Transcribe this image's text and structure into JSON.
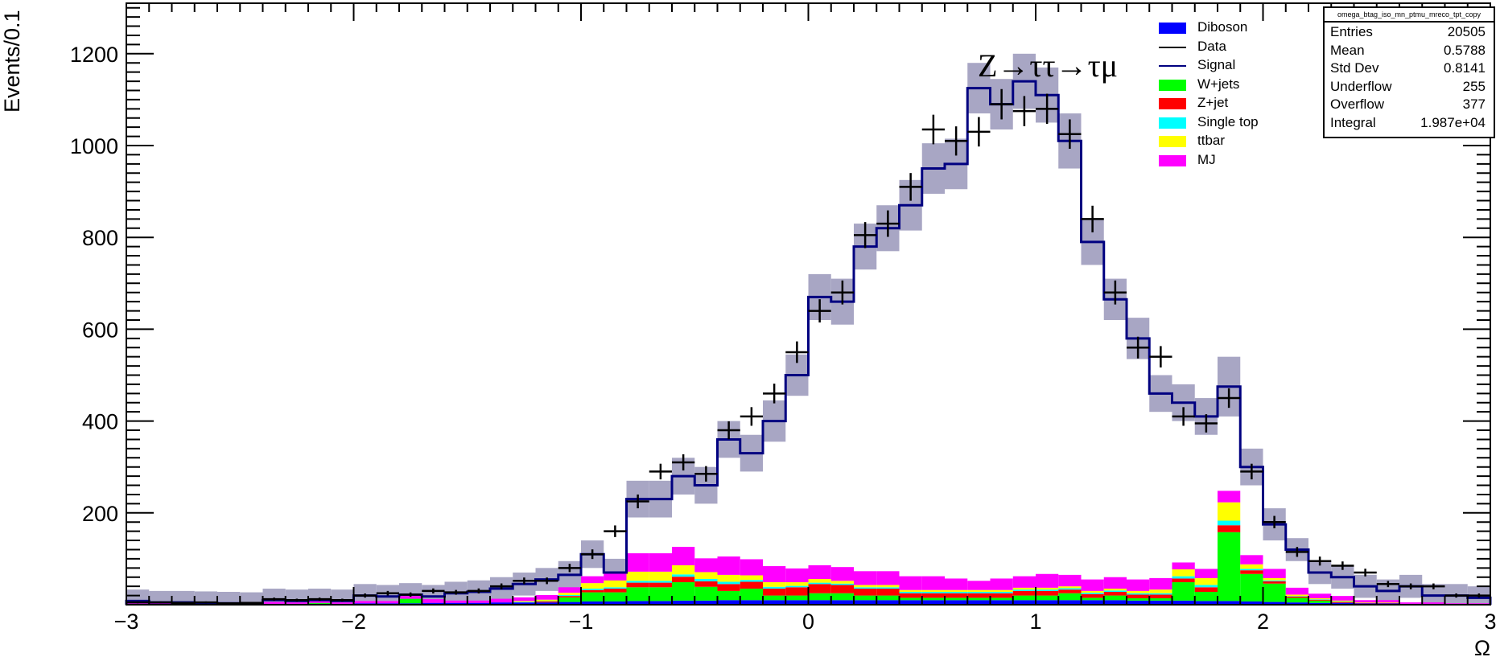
{
  "chart_data": {
    "type": "bar",
    "title": "Z→ττ→τμ",
    "xlabel": "Ω",
    "ylabel": "Events/0.1",
    "xlim": [
      -3,
      3
    ],
    "ylim": [
      0,
      1310
    ],
    "x_ticks": [
      "−3",
      "−2",
      "−1",
      "0",
      "1",
      "2",
      "3"
    ],
    "y_ticks": [
      "200",
      "400",
      "600",
      "800",
      "1000",
      "1200"
    ],
    "bin_width": 0.1,
    "bin_edges_start": -3.0,
    "signal": [
      8,
      5,
      5,
      4,
      3,
      2,
      10,
      8,
      10,
      8,
      20,
      18,
      22,
      18,
      25,
      28,
      35,
      45,
      55,
      65,
      110,
      70,
      230,
      230,
      280,
      260,
      360,
      330,
      400,
      500,
      670,
      660,
      780,
      820,
      870,
      950,
      960,
      1125,
      1090,
      1140,
      1110,
      1010,
      790,
      665,
      580,
      460,
      440,
      410,
      475,
      300,
      175,
      120,
      70,
      60,
      40,
      30,
      40,
      20,
      20,
      15
    ],
    "signal_band": [
      25,
      25,
      25,
      25,
      25,
      25,
      25,
      25,
      25,
      25,
      25,
      25,
      25,
      25,
      25,
      25,
      25,
      25,
      25,
      30,
      30,
      30,
      40,
      40,
      40,
      40,
      40,
      40,
      45,
      45,
      50,
      50,
      50,
      50,
      55,
      55,
      55,
      55,
      55,
      60,
      60,
      60,
      50,
      45,
      45,
      40,
      40,
      40,
      65,
      40,
      35,
      25,
      25,
      25,
      25,
      25,
      25,
      25,
      25,
      25
    ],
    "data": [
      5,
      5,
      4,
      5,
      3,
      4,
      12,
      10,
      12,
      10,
      20,
      25,
      22,
      30,
      27,
      30,
      40,
      52,
      52,
      80,
      110,
      160,
      225,
      290,
      310,
      285,
      380,
      410,
      460,
      550,
      640,
      680,
      805,
      830,
      910,
      1035,
      1010,
      1030,
      1090,
      1075,
      1080,
      1025,
      840,
      680,
      560,
      540,
      410,
      395,
      450,
      290,
      180,
      115,
      95,
      85,
      70,
      45,
      40,
      40,
      20,
      20
    ],
    "stack_order": [
      "Diboson",
      "W+jets",
      "Z+jet",
      "Single top",
      "ttbar",
      "MJ"
    ],
    "stack": {
      "Diboson": [
        2,
        1,
        1,
        1,
        1,
        1,
        2,
        2,
        2,
        2,
        3,
        3,
        3,
        4,
        4,
        4,
        5,
        5,
        5,
        6,
        7,
        7,
        8,
        8,
        9,
        9,
        10,
        10,
        10,
        10,
        10,
        10,
        10,
        10,
        10,
        10,
        10,
        10,
        10,
        10,
        10,
        10,
        10,
        10,
        9,
        9,
        9,
        8,
        8,
        7,
        6,
        5,
        4,
        4,
        3,
        3,
        2,
        2,
        1,
        1
      ],
      "W+jets": [
        0,
        0,
        0,
        0,
        0,
        0,
        0,
        0,
        2,
        0,
        0,
        0,
        10,
        0,
        0,
        0,
        0,
        0,
        0,
        10,
        20,
        20,
        30,
        30,
        40,
        30,
        20,
        25,
        10,
        10,
        15,
        15,
        10,
        10,
        5,
        5,
        5,
        5,
        5,
        10,
        10,
        15,
        5,
        10,
        5,
        5,
        40,
        20,
        150,
        60,
        40,
        10,
        5,
        0,
        0,
        0,
        0,
        0,
        0,
        0
      ],
      "Z+jet": [
        0,
        0,
        0,
        0,
        0,
        0,
        0,
        0,
        0,
        0,
        0,
        0,
        0,
        0,
        0,
        0,
        0,
        0,
        2,
        3,
        5,
        8,
        10,
        10,
        12,
        12,
        15,
        15,
        15,
        18,
        20,
        18,
        15,
        15,
        10,
        10,
        10,
        10,
        10,
        10,
        10,
        8,
        8,
        8,
        8,
        8,
        8,
        10,
        15,
        8,
        5,
        3,
        2,
        2,
        1,
        1,
        0,
        0,
        0,
        0
      ],
      "Single top": [
        0,
        0,
        0,
        0,
        0,
        0,
        0,
        0,
        0,
        0,
        0,
        0,
        0,
        0,
        0,
        0,
        0,
        1,
        1,
        2,
        3,
        3,
        4,
        4,
        5,
        5,
        5,
        4,
        4,
        3,
        3,
        3,
        3,
        3,
        3,
        3,
        3,
        3,
        3,
        3,
        3,
        3,
        3,
        3,
        3,
        3,
        5,
        5,
        10,
        3,
        2,
        1,
        1,
        1,
        0,
        0,
        0,
        0,
        0,
        0
      ],
      "ttbar": [
        0,
        0,
        0,
        0,
        0,
        0,
        0,
        0,
        0,
        0,
        0,
        0,
        0,
        0,
        0,
        0,
        0,
        2,
        3,
        5,
        12,
        15,
        20,
        20,
        20,
        15,
        15,
        10,
        10,
        8,
        8,
        6,
        5,
        5,
        4,
        4,
        4,
        4,
        4,
        4,
        4,
        4,
        4,
        4,
        5,
        8,
        15,
        15,
        40,
        10,
        5,
        3,
        2,
        2,
        1,
        1,
        0,
        0,
        0,
        0
      ],
      "MJ": [
        2,
        2,
        2,
        2,
        2,
        2,
        4,
        3,
        4,
        3,
        5,
        5,
        6,
        8,
        5,
        5,
        8,
        8,
        10,
        12,
        15,
        15,
        40,
        40,
        40,
        30,
        40,
        35,
        35,
        30,
        30,
        30,
        30,
        30,
        30,
        30,
        25,
        20,
        25,
        25,
        30,
        25,
        25,
        25,
        25,
        25,
        15,
        20,
        25,
        20,
        20,
        15,
        10,
        10,
        5,
        5,
        3,
        3,
        2,
        2
      ]
    },
    "colors": {
      "Diboson": "#0000ff",
      "W+jets": "#00ff00",
      "Z+jet": "#ff0000",
      "Single top": "#00ffff",
      "ttbar": "#ffff00",
      "MJ": "#ff00ff",
      "signal_line": "#000080",
      "signal_band": "#a8a6c4",
      "data": "#000000"
    },
    "legend": [
      {
        "label": "Diboson",
        "kind": "box",
        "color": "#0000ff"
      },
      {
        "label": "Data",
        "kind": "line",
        "color": "#000000"
      },
      {
        "label": "Signal",
        "kind": "line",
        "color": "#000080"
      },
      {
        "label": "W+jets",
        "kind": "box",
        "color": "#00ff00"
      },
      {
        "label": "Z+jet",
        "kind": "box",
        "color": "#ff0000"
      },
      {
        "label": "Single top",
        "kind": "box",
        "color": "#00ffff"
      },
      {
        "label": "ttbar",
        "kind": "box",
        "color": "#ffff00"
      },
      {
        "label": "MJ",
        "kind": "box",
        "color": "#ff00ff"
      }
    ],
    "legend_position": "top-right",
    "stats_box": {
      "name": "omega_btag_iso_mn_ptmu_mreco_tpt_copy",
      "rows": [
        {
          "key": "Entries",
          "value": "20505"
        },
        {
          "key": "Mean",
          "value": "0.5788"
        },
        {
          "key": "Std Dev",
          "value": "0.8141"
        },
        {
          "key": "Underflow",
          "value": "255"
        },
        {
          "key": "Overflow",
          "value": "377"
        },
        {
          "key": "Integral",
          "value": "1.987e+04"
        }
      ]
    },
    "grid": false
  }
}
